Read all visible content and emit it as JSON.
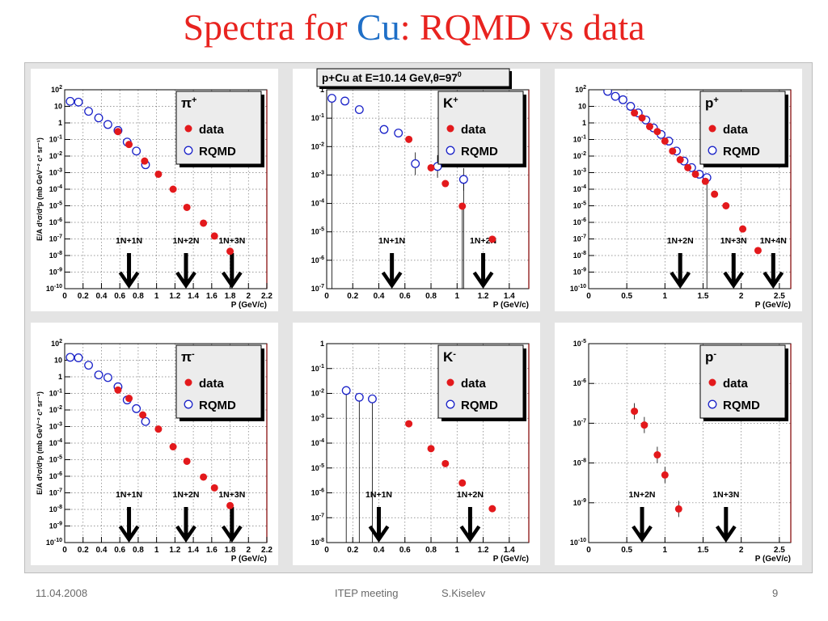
{
  "title": {
    "prefix": "Spectra for ",
    "highlight": "Cu",
    "suffix": ": RQMD vs data"
  },
  "footer": {
    "date": "11.04.2008",
    "meeting": "ITEP meeting",
    "author": "S.Kiselev",
    "page": "9"
  },
  "colors": {
    "title_red": "#e8231f",
    "cu_blue": "#1f6fc7",
    "data": "#e3191c",
    "rqmd": "#1a22c8"
  },
  "chart_data": [
    {
      "id": "pi-plus",
      "type": "scatter",
      "particle": "π",
      "charge": "+",
      "xlabel": "P (GeV/c)",
      "ylabel": "E/A d³σ/d³p (mb GeV⁻² c³ sr⁻¹)",
      "xlim": [
        0,
        2.2
      ],
      "ylog": [
        -10,
        2
      ],
      "grid": true,
      "legend": "top-right",
      "xticks": [
        0,
        0.2,
        0.4,
        0.6,
        0.8,
        1,
        1.2,
        1.4,
        1.6,
        1.8,
        2,
        2.2
      ],
      "xtick_labels": [
        "0",
        "0.2",
        "0.4",
        "0.6",
        "0.8",
        "1",
        "1.2",
        "1.4",
        "1.6",
        "1.8",
        "2",
        "2.2"
      ],
      "series": [
        {
          "name": "data",
          "x": [
            0.58,
            0.7,
            0.87,
            1.02,
            1.18,
            1.33,
            1.51,
            1.63,
            1.8
          ],
          "y": [
            0.3,
            0.05,
            0.005,
            0.0008,
            0.0001,
            8e-06,
            9e-07,
            1.5e-07,
            1.8e-08
          ]
        },
        {
          "name": "RQMD",
          "x": [
            0.06,
            0.15,
            0.26,
            0.37,
            0.47,
            0.58,
            0.68,
            0.78,
            0.88
          ],
          "y": [
            20,
            18,
            5,
            2,
            0.8,
            0.35,
            0.07,
            0.02,
            0.003
          ]
        }
      ],
      "arrows": [
        {
          "label": "1N+1N",
          "x": 0.7
        },
        {
          "label": "1N+2N",
          "x": 1.32
        },
        {
          "label": "1N+3N",
          "x": 1.82
        }
      ]
    },
    {
      "id": "k-plus",
      "type": "scatter",
      "particle": "K",
      "charge": "+",
      "xlabel": "P (GeV/c)",
      "ylabel": "",
      "xlim": [
        0,
        1.55
      ],
      "ylog": [
        -7,
        0
      ],
      "grid": true,
      "legend": "top-right",
      "xticks": [
        0,
        0.2,
        0.4,
        0.6,
        0.8,
        1,
        1.2,
        1.4
      ],
      "xtick_labels": [
        "0",
        "0.2",
        "0.4",
        "0.6",
        "0.8",
        "1",
        "1.2",
        "1.4"
      ],
      "annotation": {
        "prefix": "p+Cu at E=10.14 GeV,",
        "theta": "θ",
        "value": "=97",
        "degree": "0"
      },
      "series": [
        {
          "name": "data",
          "x": [
            0.63,
            0.8,
            0.91,
            1.04,
            1.27
          ],
          "y": [
            0.018,
            0.0018,
            0.0005,
            8e-05,
            5.5e-06
          ]
        },
        {
          "name": "RQMD",
          "x": [
            0.04,
            0.14,
            0.25,
            0.44,
            0.55,
            0.68,
            0.85,
            1.05
          ],
          "y": [
            0.5,
            0.4,
            0.2,
            0.04,
            0.03,
            0.0025,
            0.002,
            0.0007
          ]
        }
      ],
      "arrows": [
        {
          "label": "1N+1N",
          "x": 0.5
        },
        {
          "label": "1N+2N",
          "x": 1.2
        }
      ]
    },
    {
      "id": "p-plus",
      "type": "scatter",
      "particle": "p",
      "charge": "+",
      "xlabel": "P (GeV/c)",
      "ylabel": "",
      "xlim": [
        0,
        2.65
      ],
      "ylog": [
        -10,
        2
      ],
      "grid": true,
      "legend": "top-right",
      "xticks": [
        0,
        0.5,
        1,
        1.5,
        2,
        2.5
      ],
      "xtick_labels": [
        "0",
        "0.5",
        "1",
        "1.5",
        "2",
        "2.5"
      ],
      "series": [
        {
          "name": "data",
          "x": [
            0.6,
            0.7,
            0.8,
            0.9,
            1.0,
            1.1,
            1.2,
            1.3,
            1.4,
            1.53,
            1.65,
            1.8,
            2.02,
            2.22
          ],
          "y": [
            4,
            2,
            0.6,
            0.3,
            0.08,
            0.02,
            0.006,
            0.002,
            0.0008,
            0.0003,
            5e-05,
            1e-05,
            4e-07,
            2e-08
          ]
        },
        {
          "name": "RQMD",
          "x": [
            0.25,
            0.35,
            0.45,
            0.55,
            0.65,
            0.75,
            0.85,
            0.95,
            1.05,
            1.15,
            1.25,
            1.35,
            1.45,
            1.55
          ],
          "y": [
            80,
            40,
            25,
            10,
            4,
            1.5,
            0.5,
            0.2,
            0.08,
            0.02,
            0.005,
            0.002,
            0.0008,
            0.0005
          ]
        }
      ],
      "arrows": [
        {
          "label": "1N+2N",
          "x": 1.2
        },
        {
          "label": "1N+3N",
          "x": 1.9
        },
        {
          "label": "1N+4N",
          "x": 2.42
        }
      ]
    },
    {
      "id": "pi-minus",
      "type": "scatter",
      "particle": "π",
      "charge": "-",
      "xlabel": "P (GeV/c)",
      "ylabel": "E/A d³σ/d³p (mb GeV⁻² c³ sr⁻¹)",
      "xlim": [
        0,
        2.2
      ],
      "ylog": [
        -10,
        2
      ],
      "grid": true,
      "legend": "top-right",
      "xticks": [
        0,
        0.2,
        0.4,
        0.6,
        0.8,
        1,
        1.2,
        1.4,
        1.6,
        1.8,
        2,
        2.2
      ],
      "xtick_labels": [
        "0",
        "0.2",
        "0.4",
        "0.6",
        "0.8",
        "1",
        "1.2",
        "1.4",
        "1.6",
        "1.8",
        "2",
        "2.2"
      ],
      "series": [
        {
          "name": "data",
          "x": [
            0.58,
            0.7,
            0.85,
            1.02,
            1.18,
            1.33,
            1.51,
            1.63,
            1.8
          ],
          "y": [
            0.16,
            0.05,
            0.005,
            0.0007,
            6e-05,
            8e-06,
            9e-07,
            2e-07,
            1.7e-08
          ]
        },
        {
          "name": "RQMD",
          "x": [
            0.06,
            0.15,
            0.26,
            0.37,
            0.47,
            0.58,
            0.68,
            0.78,
            0.88
          ],
          "y": [
            15,
            14,
            5,
            1.3,
            0.9,
            0.25,
            0.04,
            0.012,
            0.002
          ]
        }
      ],
      "arrows": [
        {
          "label": "1N+1N",
          "x": 0.7
        },
        {
          "label": "1N+2N",
          "x": 1.32
        },
        {
          "label": "1N+3N",
          "x": 1.82
        }
      ]
    },
    {
      "id": "k-minus",
      "type": "scatter",
      "particle": "K",
      "charge": "-",
      "xlabel": "P (GeV/c)",
      "ylabel": "",
      "xlim": [
        0,
        1.55
      ],
      "ylog": [
        -8,
        0
      ],
      "grid": true,
      "legend": "top-right",
      "xticks": [
        0,
        0.2,
        0.4,
        0.6,
        0.8,
        1,
        1.2,
        1.4
      ],
      "xtick_labels": [
        "0",
        "0.2",
        "0.4",
        "0.6",
        "0.8",
        "1",
        "1.2",
        "1.4"
      ],
      "series": [
        {
          "name": "data",
          "x": [
            0.63,
            0.8,
            0.91,
            1.04,
            1.27
          ],
          "y": [
            0.0006,
            6e-05,
            1.5e-05,
            2.5e-06,
            2.3e-07
          ]
        },
        {
          "name": "RQMD",
          "x": [
            0.15,
            0.25,
            0.35
          ],
          "y": [
            0.013,
            0.007,
            0.006
          ]
        }
      ],
      "arrows": [
        {
          "label": "1N+1N",
          "x": 0.4
        },
        {
          "label": "1N+2N",
          "x": 1.1
        }
      ]
    },
    {
      "id": "p-minus",
      "type": "scatter",
      "particle": "p",
      "charge": "-",
      "xlabel": "P (GeV/c)",
      "ylabel": "",
      "xlim": [
        0,
        2.65
      ],
      "ylog": [
        -10,
        -5
      ],
      "grid": true,
      "legend": "top-right",
      "xticks": [
        0,
        0.5,
        1,
        1.5,
        2,
        2.5
      ],
      "xtick_labels": [
        "0",
        "0.5",
        "1",
        "1.5",
        "2",
        "2.5"
      ],
      "series": [
        {
          "name": "data",
          "x": [
            0.6,
            0.73,
            0.9,
            1.0,
            1.18
          ],
          "y": [
            2e-07,
            9e-08,
            1.6e-08,
            5e-09,
            7e-10
          ]
        },
        {
          "name": "RQMD",
          "x": [],
          "y": []
        }
      ],
      "arrows": [
        {
          "label": "1N+2N",
          "x": 0.7
        },
        {
          "label": "1N+3N",
          "x": 1.8
        }
      ]
    }
  ]
}
